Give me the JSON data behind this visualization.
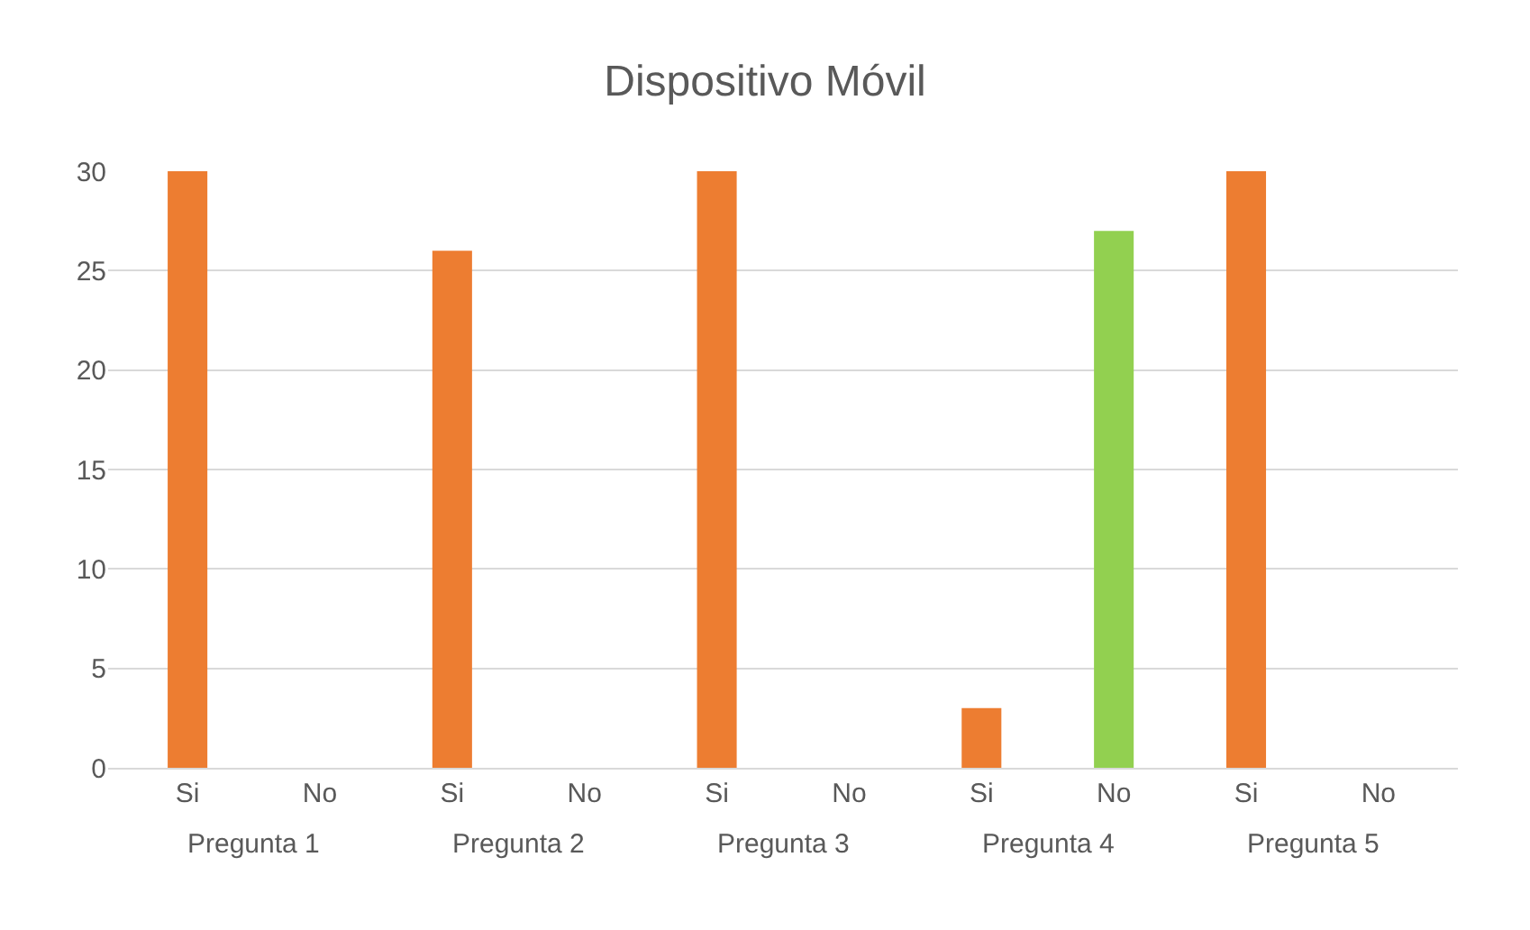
{
  "chart_data": {
    "type": "bar",
    "title": "Dispositivo Móvil",
    "categories": [
      "Si",
      "No",
      "Si",
      "No",
      "Si",
      "No",
      "Si",
      "No",
      "Si",
      "No"
    ],
    "values": [
      30,
      0,
      26,
      0,
      30,
      0,
      3,
      27,
      30,
      0
    ],
    "colors": [
      "#ed7d31",
      "#92d050",
      "#ed7d31",
      "#92d050",
      "#ed7d31",
      "#92d050",
      "#ed7d31",
      "#92d050",
      "#ed7d31",
      "#92d050"
    ],
    "annotations": [
      "Pregunta 1",
      "Pregunta 2",
      "Pregunta 3",
      "Pregunta 4",
      "Pregunta 5"
    ],
    "ylim": [
      0,
      30
    ],
    "yticks": [
      0,
      5,
      10,
      15,
      20,
      25,
      30
    ],
    "grid": "y"
  }
}
